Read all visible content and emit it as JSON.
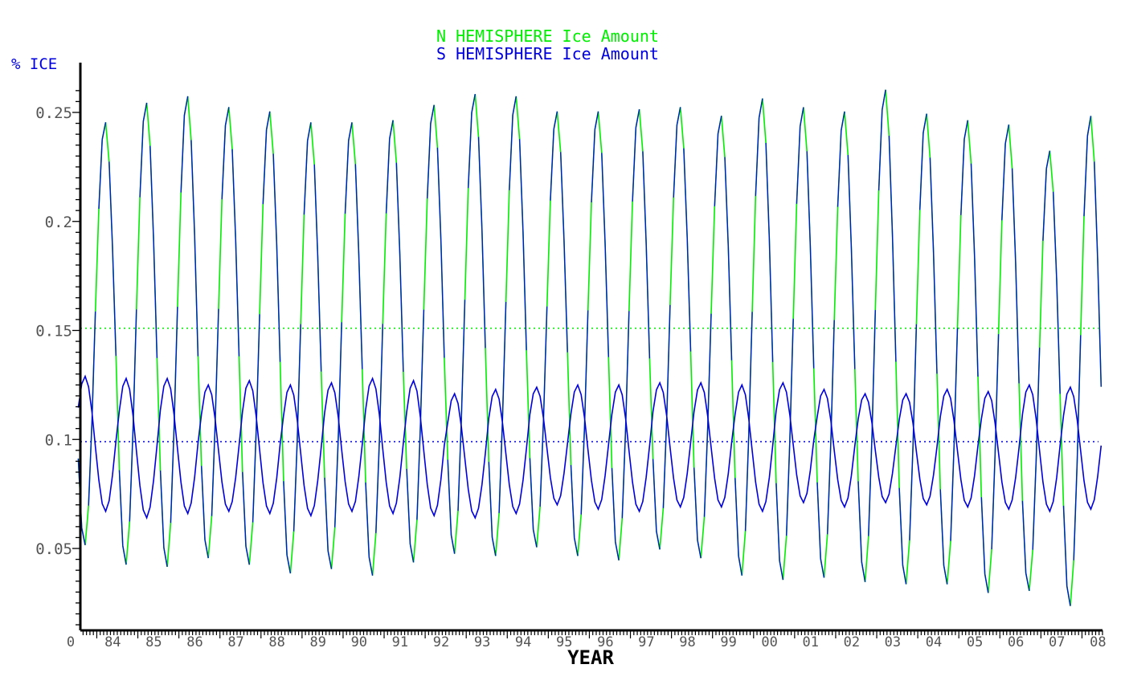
{
  "chart_data": {
    "type": "line",
    "title_lines": [
      "N HEMISPHERE Ice Amount",
      "S HEMISPHERE Ice Amount"
    ],
    "ylabel": "% ICE",
    "xlabel": "YEAR",
    "ylim": [
      0,
      0.26
    ],
    "xlim": [
      1983.6,
      2008.5
    ],
    "yticks": [
      0.05,
      0.1,
      0.15,
      0.2,
      0.25
    ],
    "ytick_labels": [
      "0.05",
      "0.1",
      "0.15",
      "0.2",
      "0.25"
    ],
    "xtick_labels": [
      "0",
      "84",
      "85",
      "86",
      "87",
      "88",
      "89",
      "90",
      "91",
      "92",
      "93",
      "94",
      "95",
      "96",
      "97",
      "98",
      "99",
      "00",
      "01",
      "02",
      "03",
      "04",
      "05",
      "06",
      "07",
      "08"
    ],
    "grid": false,
    "reference_lines": [
      {
        "series": "N HEMISPHERE",
        "y": 0.151,
        "style": "dotted"
      },
      {
        "series": "S HEMISPHERE",
        "y": 0.099,
        "style": "dotted"
      }
    ],
    "series": [
      {
        "name": "N HEMISPHERE",
        "color": "#00ee00",
        "cycle_mean": 0.149,
        "annual_max": [
          0.246,
          0.255,
          0.258,
          0.253,
          0.251,
          0.246,
          0.246,
          0.247,
          0.254,
          0.259,
          0.258,
          0.251,
          0.251,
          0.252,
          0.253,
          0.249,
          0.257,
          0.253,
          0.251,
          0.261,
          0.25,
          0.247,
          0.245,
          0.233,
          0.249
        ],
        "annual_min": [
          0.051,
          0.042,
          0.041,
          0.045,
          0.042,
          0.038,
          0.04,
          0.037,
          0.043,
          0.047,
          0.046,
          0.05,
          0.046,
          0.044,
          0.049,
          0.045,
          0.037,
          0.035,
          0.036,
          0.034,
          0.033,
          0.033,
          0.029,
          0.03,
          0.023
        ]
      },
      {
        "name": "S HEMISPHERE",
        "color": "#0000dd",
        "cycle_mean": 0.097,
        "annual_max": [
          0.129,
          0.128,
          0.128,
          0.125,
          0.127,
          0.125,
          0.126,
          0.128,
          0.127,
          0.121,
          0.123,
          0.124,
          0.125,
          0.125,
          0.126,
          0.126,
          0.125,
          0.126,
          0.123,
          0.121,
          0.121,
          0.123,
          0.122,
          0.125,
          0.124
        ],
        "annual_min": [
          0.067,
          0.064,
          0.066,
          0.067,
          0.066,
          0.065,
          0.067,
          0.066,
          0.065,
          0.064,
          0.066,
          0.07,
          0.068,
          0.067,
          0.069,
          0.069,
          0.067,
          0.071,
          0.069,
          0.071,
          0.07,
          0.069,
          0.068,
          0.067,
          0.068
        ]
      }
    ]
  }
}
